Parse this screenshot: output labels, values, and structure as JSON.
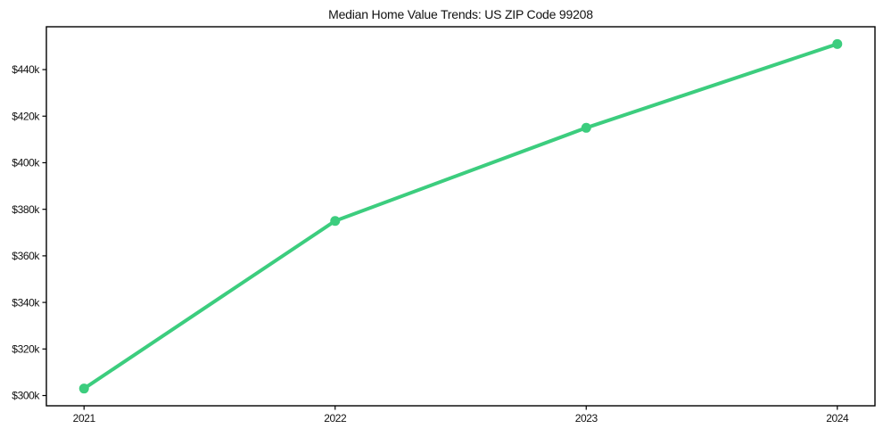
{
  "chart_data": {
    "type": "line",
    "title": "Median Home Value Trends: US ZIP Code 99208",
    "x": [
      2021,
      2022,
      2023,
      2024
    ],
    "x_tick_labels": [
      "2021",
      "2022",
      "2023",
      "2024"
    ],
    "series": [
      {
        "name": "Median Home Value",
        "values": [
          303000,
          375000,
          415000,
          451000
        ]
      }
    ],
    "y_ticks": [
      300000,
      320000,
      340000,
      360000,
      380000,
      400000,
      420000,
      440000
    ],
    "y_tick_labels": [
      "$300k",
      "$320k",
      "$340k",
      "$360k",
      "$380k",
      "$400k",
      "$420k",
      "$440k"
    ],
    "xlim": [
      2020.85,
      2024.15
    ],
    "ylim": [
      295600,
      458400
    ],
    "grid": false,
    "legend": "none",
    "line_color": "#3ccd7e",
    "marker": "circle",
    "axis_color": "#000000",
    "background_color": "#ffffff"
  }
}
